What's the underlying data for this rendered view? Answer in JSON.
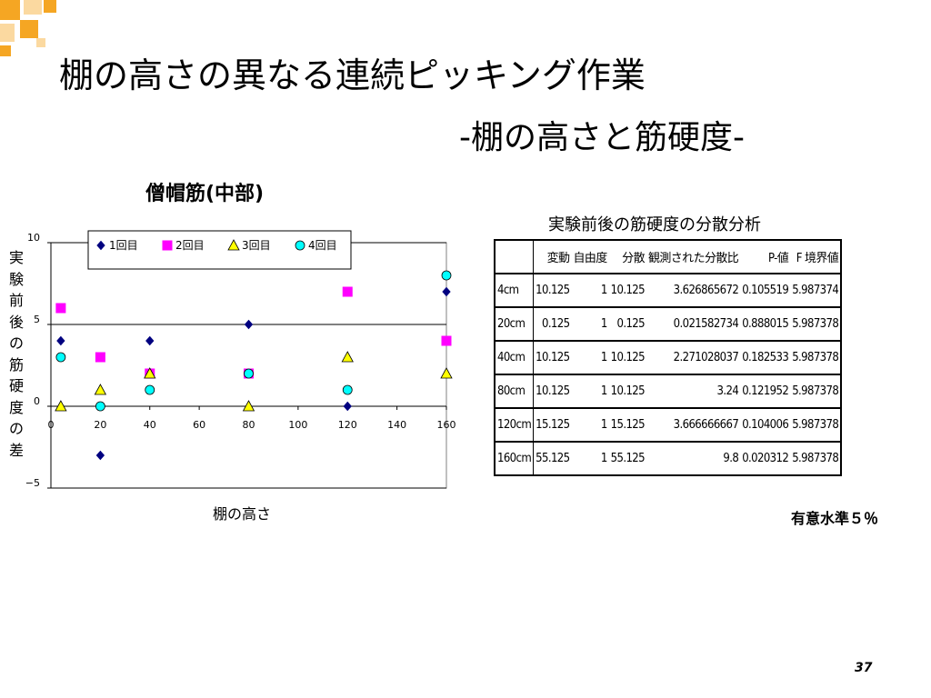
{
  "slide": {
    "title_line1": "棚の高さの異なる連続ピッキング作業",
    "title_line2": "-棚の高さと筋硬度-",
    "page_number": "37"
  },
  "colors": {
    "corner_orange": "#f5a623",
    "corner_light": "#fbd9a0",
    "series1": "#000080",
    "series2": "#ff00ff",
    "series3": "#ffff00",
    "series4": "#00ffff"
  },
  "chart_data": {
    "type": "scatter",
    "title": "僧帽筋(中部)",
    "xlabel": "棚の高さ",
    "ylabel": "実験前後の筋硬度の差",
    "xlim": [
      0,
      160
    ],
    "ylim": [
      -5,
      10
    ],
    "x_ticks": [
      "0",
      "20",
      "40",
      "60",
      "80",
      "100",
      "120",
      "140",
      "160"
    ],
    "y_ticks": [
      "10",
      "5",
      "0",
      "−5"
    ],
    "legend_position": "top-inside",
    "series": [
      {
        "name": "1回目",
        "marker": "diamond",
        "color": "#000080",
        "x": [
          4,
          20,
          40,
          80,
          120,
          160
        ],
        "y": [
          4,
          -3,
          4,
          5,
          0,
          7
        ]
      },
      {
        "name": "2回目",
        "marker": "square",
        "color": "#ff00ff",
        "x": [
          4,
          20,
          40,
          80,
          120,
          160
        ],
        "y": [
          6,
          3,
          2,
          2,
          7,
          4
        ]
      },
      {
        "name": "3回目",
        "marker": "triangle",
        "color": "#ffff00",
        "x": [
          4,
          20,
          40,
          80,
          120,
          160
        ],
        "y": [
          0,
          1,
          2,
          0,
          3,
          2
        ]
      },
      {
        "name": "4回目",
        "marker": "circle",
        "color": "#00ffff",
        "x": [
          4,
          20,
          40,
          80,
          120,
          160
        ],
        "y": [
          3,
          0,
          1,
          2,
          1,
          8
        ]
      }
    ]
  },
  "anova": {
    "title": "実験前後の筋硬度の分散分析",
    "headers": [
      "",
      "変動",
      "自由度",
      "分散",
      "観測された分散比",
      "P-値",
      "F 境界値"
    ],
    "rows": [
      [
        "4cm",
        "10.125",
        "1",
        "10.125",
        "3.626865672",
        "0.105519",
        "5.987374"
      ],
      [
        "20cm",
        "0.125",
        "1",
        "0.125",
        "0.021582734",
        "0.888015",
        "5.987378"
      ],
      [
        "40cm",
        "10.125",
        "1",
        "10.125",
        "2.271028037",
        "0.182533",
        "5.987378"
      ],
      [
        "80cm",
        "10.125",
        "1",
        "10.125",
        "3.24",
        "0.121952",
        "5.987378"
      ],
      [
        "120cm",
        "15.125",
        "1",
        "15.125",
        "3.666666667",
        "0.104006",
        "5.987378"
      ],
      [
        "160cm",
        "55.125",
        "1",
        "55.125",
        "9.8",
        "0.020312",
        "5.987378"
      ]
    ],
    "significance_note": "有意水準５％"
  }
}
